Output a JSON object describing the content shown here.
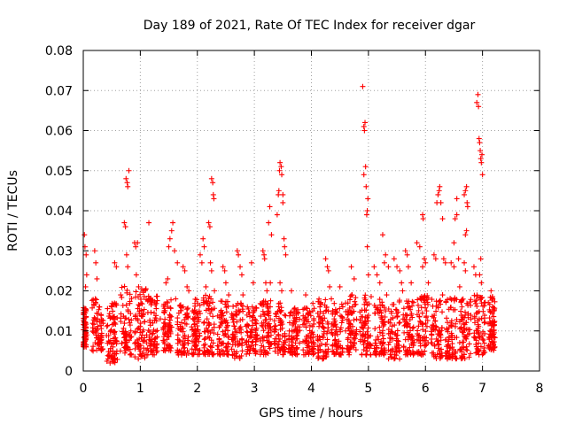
{
  "chart_data": {
    "type": "scatter",
    "title": "Day 189 of 2021, Rate Of TEC Index for receiver dgar",
    "xlabel": "GPS time / hours",
    "ylabel": "ROTI / TECUs",
    "xlim": [
      0,
      8
    ],
    "ylim": [
      0,
      0.08
    ],
    "x_ticks": [
      "0",
      "1",
      "2",
      "3",
      "4",
      "5",
      "6",
      "7",
      "8"
    ],
    "y_ticks": [
      "0",
      "0.01",
      "0.02",
      "0.03",
      "0.04",
      "0.05",
      "0.06",
      "0.07",
      "0.08"
    ],
    "grid": true,
    "marker": "plus",
    "series_color": "#ff0000",
    "series": [
      {
        "name": "ROTI",
        "points": [
          [
            0.02,
            0.034
          ],
          [
            0.03,
            0.031
          ],
          [
            0.05,
            0.029
          ],
          [
            0.06,
            0.024
          ],
          [
            0.04,
            0.021
          ],
          [
            0.05,
            0.015
          ],
          [
            0.03,
            0.012
          ],
          [
            0.06,
            0.009
          ],
          [
            0.05,
            0.006
          ],
          [
            0.04,
            0.011
          ],
          [
            0.2,
            0.03
          ],
          [
            0.22,
            0.027
          ],
          [
            0.24,
            0.023
          ],
          [
            0.21,
            0.018
          ],
          [
            0.25,
            0.013
          ],
          [
            0.23,
            0.01
          ],
          [
            0.26,
            0.008
          ],
          [
            0.28,
            0.016
          ],
          [
            0.45,
            0.004
          ],
          [
            0.47,
            0.002
          ],
          [
            0.5,
            0.003
          ],
          [
            0.52,
            0.006
          ],
          [
            0.48,
            0.01
          ],
          [
            0.55,
            0.012
          ],
          [
            0.5,
            0.016
          ],
          [
            0.55,
            0.027
          ],
          [
            0.58,
            0.026
          ],
          [
            0.72,
            0.037
          ],
          [
            0.74,
            0.036
          ],
          [
            0.75,
            0.048
          ],
          [
            0.77,
            0.047
          ],
          [
            0.78,
            0.046
          ],
          [
            0.8,
            0.05
          ],
          [
            0.76,
            0.029
          ],
          [
            0.78,
            0.026
          ],
          [
            0.9,
            0.032
          ],
          [
            0.92,
            0.031
          ],
          [
            0.95,
            0.032
          ],
          [
            0.93,
            0.024
          ],
          [
            0.97,
            0.021
          ],
          [
            0.95,
            0.013
          ],
          [
            1.0,
            0.005
          ],
          [
            0.98,
            0.008
          ],
          [
            1.15,
            0.037
          ],
          [
            1.2,
            0.017
          ],
          [
            1.25,
            0.008
          ],
          [
            1.3,
            0.005
          ],
          [
            1.35,
            0.013
          ],
          [
            1.45,
            0.022
          ],
          [
            1.48,
            0.023
          ],
          [
            1.5,
            0.031
          ],
          [
            1.52,
            0.033
          ],
          [
            1.55,
            0.035
          ],
          [
            1.57,
            0.037
          ],
          [
            1.6,
            0.03
          ],
          [
            1.65,
            0.027
          ],
          [
            1.62,
            0.018
          ],
          [
            1.75,
            0.026
          ],
          [
            1.78,
            0.025
          ],
          [
            1.82,
            0.021
          ],
          [
            1.85,
            0.02
          ],
          [
            1.9,
            0.011
          ],
          [
            1.95,
            0.007
          ],
          [
            2.05,
            0.029
          ],
          [
            2.08,
            0.027
          ],
          [
            2.1,
            0.033
          ],
          [
            2.12,
            0.031
          ],
          [
            2.15,
            0.021
          ],
          [
            2.18,
            0.017
          ],
          [
            2.2,
            0.012
          ],
          [
            2.2,
            0.037
          ],
          [
            2.22,
            0.036
          ],
          [
            2.25,
            0.048
          ],
          [
            2.27,
            0.047
          ],
          [
            2.28,
            0.044
          ],
          [
            2.29,
            0.043
          ],
          [
            2.23,
            0.027
          ],
          [
            2.25,
            0.025
          ],
          [
            2.3,
            0.02
          ],
          [
            2.45,
            0.026
          ],
          [
            2.48,
            0.025
          ],
          [
            2.5,
            0.022
          ],
          [
            2.55,
            0.019
          ],
          [
            2.52,
            0.012
          ],
          [
            2.7,
            0.03
          ],
          [
            2.72,
            0.029
          ],
          [
            2.75,
            0.026
          ],
          [
            2.78,
            0.024
          ],
          [
            2.8,
            0.019
          ],
          [
            2.76,
            0.011
          ],
          [
            2.95,
            0.027
          ],
          [
            2.98,
            0.022
          ],
          [
            3.0,
            0.015
          ],
          [
            3.05,
            0.009
          ],
          [
            3.15,
            0.03
          ],
          [
            3.17,
            0.029
          ],
          [
            3.18,
            0.028
          ],
          [
            3.2,
            0.022
          ],
          [
            3.22,
            0.02
          ],
          [
            3.25,
            0.015
          ],
          [
            3.25,
            0.037
          ],
          [
            3.27,
            0.041
          ],
          [
            3.3,
            0.034
          ],
          [
            3.28,
            0.022
          ],
          [
            3.4,
            0.039
          ],
          [
            3.42,
            0.044
          ],
          [
            3.43,
            0.045
          ],
          [
            3.44,
            0.05
          ],
          [
            3.45,
            0.052
          ],
          [
            3.47,
            0.051
          ],
          [
            3.48,
            0.049
          ],
          [
            3.5,
            0.044
          ],
          [
            3.5,
            0.042
          ],
          [
            3.52,
            0.033
          ],
          [
            3.53,
            0.031
          ],
          [
            3.55,
            0.029
          ],
          [
            3.45,
            0.022
          ],
          [
            3.48,
            0.02
          ],
          [
            3.47,
            0.012
          ],
          [
            3.65,
            0.02
          ],
          [
            3.7,
            0.015
          ],
          [
            3.75,
            0.008
          ],
          [
            3.9,
            0.019
          ],
          [
            3.95,
            0.014
          ],
          [
            4.0,
            0.007
          ],
          [
            4.15,
            0.016
          ],
          [
            4.2,
            0.011
          ],
          [
            4.25,
            0.028
          ],
          [
            4.28,
            0.026
          ],
          [
            4.3,
            0.025
          ],
          [
            4.32,
            0.021
          ],
          [
            4.35,
            0.018
          ],
          [
            4.4,
            0.013
          ],
          [
            4.5,
            0.021
          ],
          [
            4.55,
            0.016
          ],
          [
            4.6,
            0.01
          ],
          [
            4.7,
            0.026
          ],
          [
            4.75,
            0.023
          ],
          [
            4.72,
            0.016
          ],
          [
            4.9,
            0.071
          ],
          [
            4.92,
            0.061
          ],
          [
            4.93,
            0.06
          ],
          [
            4.94,
            0.062
          ],
          [
            4.95,
            0.051
          ],
          [
            4.92,
            0.049
          ],
          [
            4.96,
            0.046
          ],
          [
            4.98,
            0.04
          ],
          [
            4.97,
            0.039
          ],
          [
            4.99,
            0.043
          ],
          [
            4.98,
            0.031
          ],
          [
            5.0,
            0.024
          ],
          [
            5.1,
            0.026
          ],
          [
            5.15,
            0.024
          ],
          [
            5.2,
            0.022
          ],
          [
            5.25,
            0.034
          ],
          [
            5.3,
            0.029
          ],
          [
            5.28,
            0.027
          ],
          [
            5.35,
            0.026
          ],
          [
            5.32,
            0.019
          ],
          [
            5.3,
            0.015
          ],
          [
            5.45,
            0.028
          ],
          [
            5.5,
            0.026
          ],
          [
            5.55,
            0.025
          ],
          [
            5.58,
            0.022
          ],
          [
            5.6,
            0.02
          ],
          [
            5.65,
            0.014
          ],
          [
            5.65,
            0.03
          ],
          [
            5.68,
            0.029
          ],
          [
            5.7,
            0.026
          ],
          [
            5.75,
            0.022
          ],
          [
            5.72,
            0.016
          ],
          [
            5.85,
            0.032
          ],
          [
            5.9,
            0.031
          ],
          [
            5.95,
            0.026
          ],
          [
            5.92,
            0.018
          ],
          [
            5.95,
            0.039
          ],
          [
            5.96,
            0.038
          ],
          [
            5.98,
            0.028
          ],
          [
            6.0,
            0.027
          ],
          [
            6.05,
            0.022
          ],
          [
            6.02,
            0.015
          ],
          [
            6.15,
            0.029
          ],
          [
            6.18,
            0.028
          ],
          [
            6.2,
            0.042
          ],
          [
            6.22,
            0.044
          ],
          [
            6.24,
            0.045
          ],
          [
            6.25,
            0.046
          ],
          [
            6.27,
            0.042
          ],
          [
            6.3,
            0.038
          ],
          [
            6.32,
            0.028
          ],
          [
            6.35,
            0.027
          ],
          [
            6.3,
            0.019
          ],
          [
            6.45,
            0.027
          ],
          [
            6.5,
            0.026
          ],
          [
            6.5,
            0.032
          ],
          [
            6.52,
            0.038
          ],
          [
            6.55,
            0.039
          ],
          [
            6.55,
            0.043
          ],
          [
            6.58,
            0.028
          ],
          [
            6.6,
            0.021
          ],
          [
            6.68,
            0.044
          ],
          [
            6.7,
            0.045
          ],
          [
            6.72,
            0.046
          ],
          [
            6.73,
            0.042
          ],
          [
            6.74,
            0.041
          ],
          [
            6.72,
            0.035
          ],
          [
            6.7,
            0.034
          ],
          [
            6.68,
            0.027
          ],
          [
            6.7,
            0.025
          ],
          [
            6.85,
            0.026
          ],
          [
            6.88,
            0.024
          ],
          [
            6.9,
            0.067
          ],
          [
            6.92,
            0.069
          ],
          [
            6.93,
            0.066
          ],
          [
            6.94,
            0.058
          ],
          [
            6.95,
            0.057
          ],
          [
            6.96,
            0.055
          ],
          [
            6.97,
            0.053
          ],
          [
            6.98,
            0.052
          ],
          [
            6.99,
            0.054
          ],
          [
            7.0,
            0.049
          ],
          [
            6.97,
            0.028
          ],
          [
            6.95,
            0.024
          ],
          [
            6.98,
            0.022
          ],
          [
            7.15,
            0.02
          ],
          [
            7.18,
            0.018
          ],
          [
            7.2,
            0.015
          ],
          [
            7.2,
            0.01
          ],
          [
            7.18,
            0.007
          ]
        ]
      }
    ],
    "dense_band": {
      "description": "dense vertical streaks of plus markers in the 0.002-0.02 range",
      "tracks": [
        [
          0.0,
          0.05,
          0.006,
          0.016
        ],
        [
          0.15,
          0.35,
          0.005,
          0.018
        ],
        [
          0.4,
          0.6,
          0.002,
          0.017
        ],
        [
          0.65,
          0.85,
          0.004,
          0.022
        ],
        [
          0.9,
          1.1,
          0.003,
          0.021
        ],
        [
          1.1,
          1.3,
          0.004,
          0.019
        ],
        [
          1.4,
          1.55,
          0.005,
          0.018
        ],
        [
          1.65,
          1.85,
          0.004,
          0.017
        ],
        [
          1.9,
          2.05,
          0.004,
          0.018
        ],
        [
          2.1,
          2.3,
          0.004,
          0.019
        ],
        [
          2.35,
          2.55,
          0.004,
          0.018
        ],
        [
          2.6,
          2.8,
          0.003,
          0.017
        ],
        [
          2.85,
          3.05,
          0.004,
          0.016
        ],
        [
          3.1,
          3.3,
          0.004,
          0.018
        ],
        [
          3.35,
          3.55,
          0.004,
          0.017
        ],
        [
          3.6,
          3.8,
          0.004,
          0.016
        ],
        [
          3.85,
          4.05,
          0.004,
          0.017
        ],
        [
          4.1,
          4.3,
          0.003,
          0.018
        ],
        [
          4.35,
          4.55,
          0.004,
          0.017
        ],
        [
          4.6,
          4.8,
          0.004,
          0.019
        ],
        [
          4.85,
          5.05,
          0.004,
          0.019
        ],
        [
          5.1,
          5.3,
          0.004,
          0.018
        ],
        [
          5.35,
          5.55,
          0.003,
          0.019
        ],
        [
          5.6,
          5.8,
          0.004,
          0.018
        ],
        [
          5.85,
          6.05,
          0.004,
          0.019
        ],
        [
          6.1,
          6.3,
          0.003,
          0.018
        ],
        [
          6.35,
          6.55,
          0.003,
          0.019
        ],
        [
          6.6,
          6.8,
          0.003,
          0.018
        ],
        [
          6.85,
          7.05,
          0.004,
          0.019
        ],
        [
          7.1,
          7.22,
          0.005,
          0.019
        ]
      ]
    }
  }
}
